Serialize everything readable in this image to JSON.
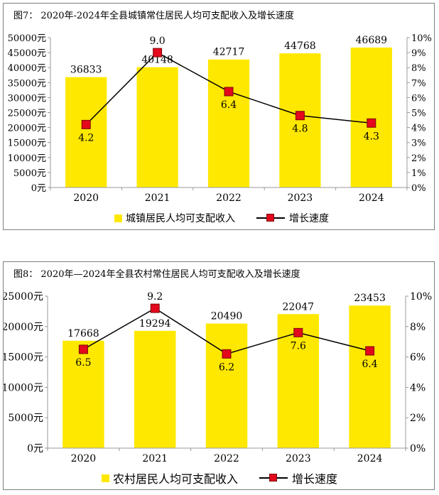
{
  "colors": {
    "bar": "#ffe800",
    "marker": "#e3081b",
    "line": "#000000",
    "axis": "#9a9a9a"
  },
  "chart_data": [
    {
      "type": "bar",
      "title": "图7：   2020年-2024年全县城镇常住居民人均可支配收入及增长速度",
      "categories": [
        "2020",
        "2021",
        "2022",
        "2023",
        "2024"
      ],
      "series": [
        {
          "name": "城镇居民人均可支配收入",
          "type": "bar",
          "axis": "left",
          "values": [
            36833,
            40148,
            42717,
            44768,
            46689
          ]
        },
        {
          "name": "增长速度",
          "type": "line",
          "axis": "right",
          "values": [
            4.2,
            9.0,
            6.4,
            4.8,
            4.3
          ]
        }
      ],
      "bar_labels": [
        "36833",
        "40148",
        "42717",
        "44768",
        "46689"
      ],
      "line_labels": [
        "4.2",
        "9.0",
        "6.4",
        "4.8",
        "4.3"
      ],
      "ylim": [
        0,
        50000
      ],
      "y2lim": [
        0,
        10
      ],
      "yticks": [
        "0元",
        "5000元",
        "10000元",
        "15000元",
        "20000元",
        "25000元",
        "30000元",
        "35000元",
        "40000元",
        "45000元",
        "50000元"
      ],
      "y2ticks": [
        "0%",
        "1%",
        "2%",
        "3%",
        "4%",
        "5%",
        "6%",
        "7%",
        "8%",
        "9%",
        "10%"
      ],
      "legend_position": "bottom"
    },
    {
      "type": "bar",
      "title": "图8：  2020年—2024年全县农村常住居民人均可支配收入及增长速度",
      "categories": [
        "2020",
        "2021",
        "2022",
        "2023",
        "2024"
      ],
      "series": [
        {
          "name": "农村居民人均可支配收入",
          "type": "bar",
          "axis": "left",
          "values": [
            17668,
            19294,
            20490,
            22047,
            23453
          ]
        },
        {
          "name": "增长速度",
          "type": "line",
          "axis": "right",
          "values": [
            6.5,
            9.2,
            6.2,
            7.6,
            6.4
          ]
        }
      ],
      "bar_labels": [
        "17668",
        "19294",
        "20490",
        "22047",
        "23453"
      ],
      "line_labels": [
        "6.5",
        "9.2",
        "6.2",
        "7.6",
        "6.4"
      ],
      "ylim": [
        0,
        25000
      ],
      "y2lim": [
        0,
        10
      ],
      "yticks": [
        "0元",
        "5000元",
        "10000元",
        "15000元",
        "20000元",
        "25000元"
      ],
      "y2ticks": [
        "0%",
        "2%",
        "4%",
        "6%",
        "8%",
        "10%"
      ],
      "legend_position": "bottom"
    }
  ]
}
